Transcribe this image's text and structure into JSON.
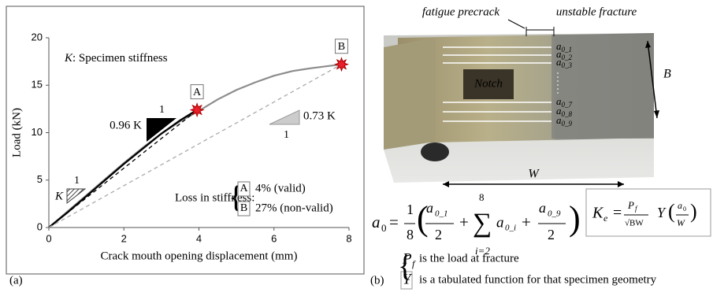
{
  "chart_data": {
    "type": "line",
    "x_label": "Crack mouth opening displacement (mm)",
    "y_label": "Load (kN)",
    "xlim": [
      0,
      8
    ],
    "xticks": [
      0,
      2,
      4,
      6,
      8
    ],
    "ylim": [
      0,
      20
    ],
    "yticks": [
      0,
      5,
      10,
      15,
      20
    ],
    "series": [
      {
        "color": "#8c8c8c",
        "dash": false,
        "x": [
          0,
          0.5,
          1,
          1.5,
          2,
          2.5,
          3,
          3.5,
          4,
          4.5,
          5,
          5.5,
          6,
          6.5,
          7,
          7.5,
          7.8
        ],
        "values": [
          0,
          1.7,
          3.4,
          5.1,
          6.8,
          8.4,
          9.9,
          11.2,
          12.3,
          13.5,
          14.5,
          15.3,
          16,
          16.5,
          16.8,
          17.05,
          17.2
        ]
      },
      {
        "color": "#000000",
        "dash": false,
        "x": [
          0,
          0.5,
          1,
          1.5,
          2,
          2.5,
          3,
          3.5,
          3.95
        ],
        "values": [
          0,
          1.6,
          3.3,
          5,
          6.7,
          8.3,
          9.9,
          11.3,
          12.4
        ]
      },
      {
        "color": "#000000",
        "dash": true,
        "x": [
          0,
          3.9
        ],
        "values": [
          0,
          12.2
        ]
      },
      {
        "color": "#aaaaaa",
        "dash": true,
        "x": [
          0,
          7.8
        ],
        "values": [
          0,
          17.2
        ]
      }
    ],
    "points": {
      "color": "#e8202a",
      "x": [
        3.95,
        7.8
      ],
      "values": [
        12.4,
        17.2
      ],
      "labels": [
        "A",
        "B"
      ]
    },
    "annotations": {
      "stiffness_symbol": "K",
      "stiffness_text": ": Specimen stiffness",
      "k1_one": "1",
      "k1_label": "K",
      "k096_one": "1",
      "k096_label": "0.96 K",
      "k073_one": "1",
      "k073_label": "0.73 K",
      "loss_label": "Loss in stiffness:",
      "loss_a_key": "A",
      "loss_a_text": "4% (valid)",
      "loss_b_key": "B",
      "loss_b_text": "27% (non-valid)"
    },
    "panel_label": "(a)"
  },
  "panel_b": {
    "label": "(b)",
    "fatigue": "fatigue precrack",
    "unstable": "unstable fracture",
    "notch": "Notch",
    "B": "B",
    "W": "W",
    "probes": [
      {
        "base": "a",
        "sub": "0_1"
      },
      {
        "base": "a",
        "sub": "0_2"
      },
      {
        "base": "a",
        "sub": "0_3"
      },
      {
        "base": "a",
        "sub": "0_7"
      },
      {
        "base": "a",
        "sub": "0_8"
      },
      {
        "base": "a",
        "sub": "0_9"
      }
    ],
    "formula_a0": {
      "lhs": "a",
      "lhs_sub": "0",
      "eq": "=",
      "coef_num": "1",
      "coef_den": "8",
      "open": "(",
      "t1": "a",
      "t1_sub": "0_1",
      "t1_den": "2",
      "plus1": "+",
      "sum": "∑",
      "sum_top": "8",
      "sum_bottom": "i=2",
      "t2": "a",
      "t2_sub": "0_i",
      "plus2": "+",
      "t3": "a",
      "t3_sub": "0_9",
      "t3_den": "2",
      "close": ")"
    },
    "formula_ke": {
      "lhs": "K",
      "lhs_sub": "e",
      "eq": "=",
      "num": "P",
      "num_sub": "f",
      "den": "√BW",
      "y": "Y",
      "open": "(",
      "a": "a",
      "a_sub": "0",
      "w": "W",
      "close": ")"
    },
    "notes": {
      "pf": "P",
      "pf_sub": "f",
      "pf_text": "is the load at fracture",
      "y": "Y",
      "y_text": "is a tabulated function for that specimen geometry"
    }
  }
}
